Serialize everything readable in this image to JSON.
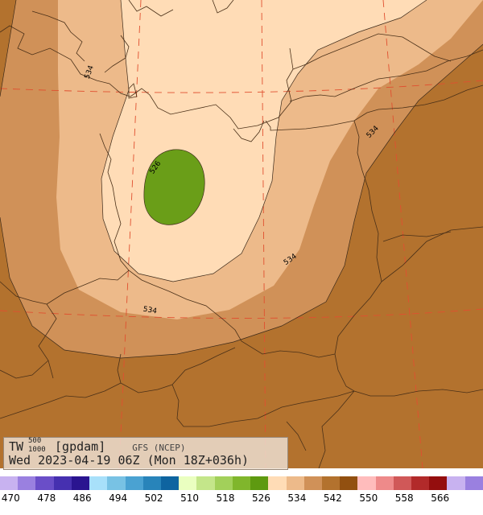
{
  "title": {
    "variable": "TW",
    "level_top": "500",
    "level_bottom": "1000",
    "unit": "[gpdam]",
    "model": "GFS (NCEP)",
    "valid": "Wed 2023-04-19 06Z (Mon 18Z+036h)"
  },
  "colors": {
    "band_526": "#ffdcb6",
    "band_530": "#edba8a",
    "band_534": "#d09158",
    "band_538": "#b3722e",
    "cell_518": "#6a9e18",
    "border": "#4a3018",
    "grid": "#e05030"
  },
  "contour_labels": [
    {
      "name": "contour-label-526",
      "text": "526"
    },
    {
      "name": "contour-label-534-north",
      "text": "534"
    },
    {
      "name": "contour-label-534-east",
      "text": "534"
    },
    {
      "name": "contour-label-534-center",
      "text": "534"
    },
    {
      "name": "contour-label-534-south",
      "text": "534"
    }
  ],
  "legend": {
    "colors": [
      "#c8b2f0",
      "#9a80e0",
      "#6a4ec8",
      "#4630b0",
      "#2a1490",
      "#a8e0fa",
      "#78c2e4",
      "#4aa2d2",
      "#2884ba",
      "#0e64a0",
      "#eaffc0",
      "#c4e68a",
      "#a2d05a",
      "#80b62c",
      "#5e9a10",
      "#ffdcb6",
      "#edba8a",
      "#d09158",
      "#b3722e",
      "#925010",
      "#ffbcbc",
      "#ee8a8a",
      "#d05858",
      "#b22a2a",
      "#940e0e",
      "#c8b2f0",
      "#9a80e0"
    ],
    "ticks": [
      "470",
      "478",
      "486",
      "494",
      "502",
      "510",
      "518",
      "526",
      "534",
      "542",
      "550",
      "558",
      "566"
    ]
  }
}
